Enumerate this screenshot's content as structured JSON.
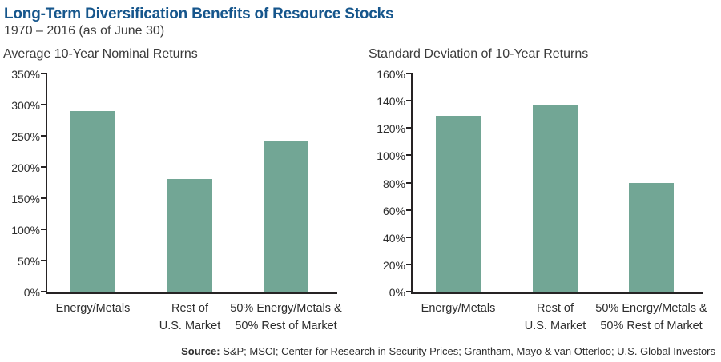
{
  "page": {
    "title": "Long-Term Diversification Benefits of Resource Stocks",
    "subtitle": "1970 – 2016 (as of June 30)"
  },
  "source": {
    "label": "Source:",
    "text": " S&P; MSCI; Center for Research in Security Prices; Grantham, Mayo & van Otterloo; U.S. Global Investors"
  },
  "colors": {
    "title_blue": "#16568c",
    "bar_green": "#72a695",
    "axis_dark": "#262324",
    "text_dark": "#3b3b3b"
  },
  "chart_data": [
    {
      "type": "bar",
      "title": "Average 10-Year Nominal Returns",
      "categories": [
        "Energy/Metals",
        "Rest of\nU.S. Market",
        "50% Energy/Metals &\n50% Rest of Market"
      ],
      "values": [
        290,
        181,
        242
      ],
      "unit": "%",
      "xlabel": "",
      "ylabel": "",
      "ylim": [
        0,
        350
      ],
      "ytick_step": 50,
      "grid": false,
      "legend": "none"
    },
    {
      "type": "bar",
      "title": "Standard Deviation of 10-Year Returns",
      "categories": [
        "Energy/Metals",
        "Rest of\nU.S. Market",
        "50% Energy/Metals &\n50% Rest of Market"
      ],
      "values": [
        129,
        137,
        80
      ],
      "unit": "%",
      "xlabel": "",
      "ylabel": "",
      "ylim": [
        0,
        160
      ],
      "ytick_step": 20,
      "grid": false,
      "legend": "none"
    }
  ]
}
